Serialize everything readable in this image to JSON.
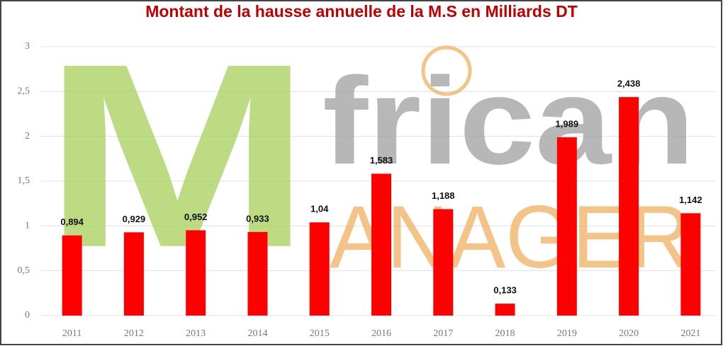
{
  "chart_data": {
    "type": "bar",
    "title": "Montant de la hausse annuelle de la M.S en Milliards DT",
    "categories": [
      "2011",
      "2012",
      "2013",
      "2014",
      "2015",
      "2016",
      "2017",
      "2018",
      "2019",
      "2020",
      "2021"
    ],
    "values": [
      0.894,
      0.929,
      0.952,
      0.933,
      1.04,
      1.583,
      1.188,
      0.133,
      1.989,
      2.438,
      1.142
    ],
    "value_labels": [
      "0,894",
      "0,929",
      "0,952",
      "0,933",
      "1,04",
      "1,583",
      "1,188",
      "0,133",
      "1,989",
      "2,438",
      "1,142"
    ],
    "color": "#ff0000",
    "ylim": [
      0,
      3
    ],
    "yticks": [
      0,
      {
        "value": 0.5,
        "label": "0,5"
      },
      1,
      {
        "value": 1.5,
        "label": "1,5"
      },
      2,
      {
        "value": 2.5,
        "label": "2,5"
      },
      3
    ],
    "grid": true
  },
  "watermark": {
    "letter": "M",
    "word": "frican",
    "subword": "ANAGER"
  }
}
